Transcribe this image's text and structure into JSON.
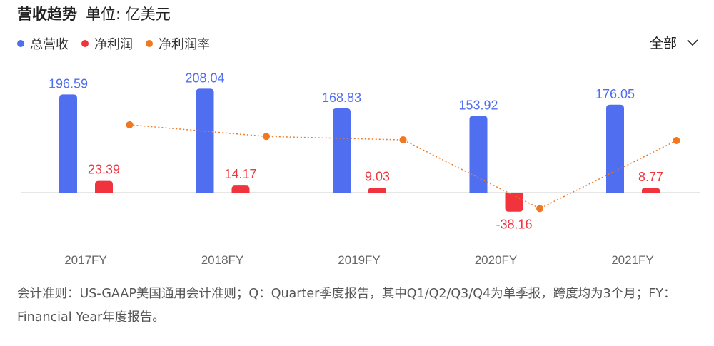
{
  "header": {
    "title": "营收趋势",
    "unit": "单位: 亿美元",
    "filter_label": "全部"
  },
  "legend": [
    {
      "label": "总营收",
      "color": "#4f6ef0"
    },
    {
      "label": "净利润",
      "color": "#f0333c"
    },
    {
      "label": "净利润率",
      "color": "#f07820"
    }
  ],
  "footnote": "会计准则：US-GAAP美国通用会计准则；Q：Quarter季度报告，其中Q1/Q2/Q3/Q4为单季报，跨度均为3个月；FY：Financial Year年度报告。",
  "chart_data": {
    "type": "bar",
    "categories": [
      "2017FY",
      "2018FY",
      "2019FY",
      "2020FY",
      "2021FY"
    ],
    "series": [
      {
        "name": "总营收",
        "type": "bar",
        "color": "#4f6ef0",
        "values": [
          196.59,
          208.04,
          168.83,
          153.92,
          176.05
        ]
      },
      {
        "name": "净利润",
        "type": "bar",
        "color": "#f0333c",
        "values": [
          23.39,
          14.17,
          9.03,
          -38.16,
          8.77
        ]
      },
      {
        "name": "净利润率",
        "type": "line",
        "color": "#f07820",
        "values": [
          11.9,
          6.8,
          5.3,
          -24.8,
          5.0
        ]
      }
    ],
    "bar_value_labels": [
      [
        "196.59",
        "208.04",
        "168.83",
        "153.92",
        "176.05"
      ],
      [
        "23.39",
        "14.17",
        "9.03",
        "-38.16",
        "8.77"
      ]
    ],
    "ylim": [
      -45,
      220
    ],
    "line_ylim": [
      -30,
      15
    ],
    "grid": false,
    "legend_position": "top-left"
  }
}
